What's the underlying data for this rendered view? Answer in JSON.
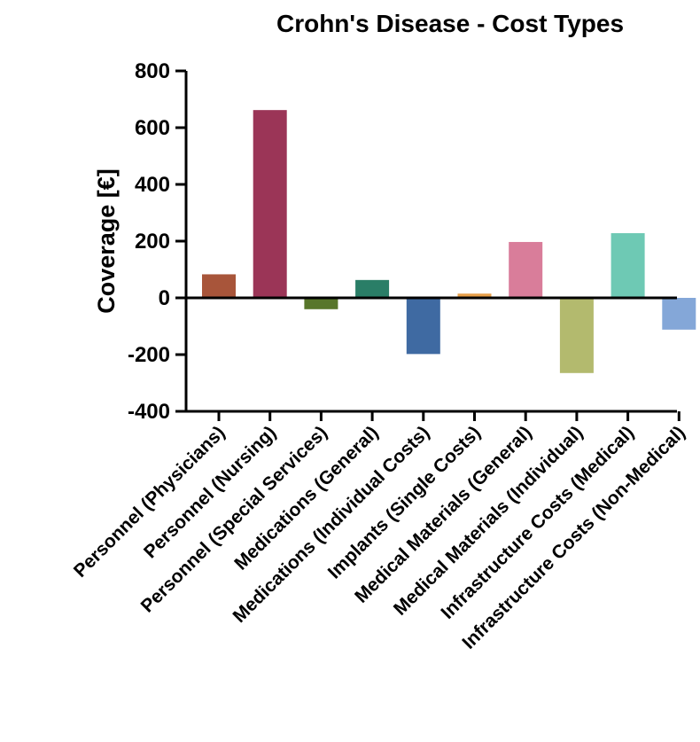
{
  "chart_data": {
    "type": "bar",
    "title": "Crohn's Disease - Cost Types",
    "xlabel": "",
    "ylabel": "Coverage [€]",
    "ylim": [
      -400,
      800
    ],
    "yticks": [
      -400,
      -200,
      0,
      200,
      400,
      600,
      800
    ],
    "grid": false,
    "categories": [
      "Personnel (Physicians)",
      "Personnel (Nursing)",
      "Personnel (Special Services)",
      "Medications (General)",
      "Medications (Individual Costs)",
      "Implants (Single Costs)",
      "Medical Materials (General)",
      "Medical Materials (Individual)",
      "Infrastructure Costs (Medical)",
      "Infrastructure Costs (Non-Medical)"
    ],
    "values": [
      83,
      662,
      -40,
      63,
      -198,
      15,
      197,
      -265,
      228,
      -112
    ],
    "colors": [
      "#a8553a",
      "#9b3557",
      "#58762a",
      "#2a7e67",
      "#3f6aa2",
      "#e8a04a",
      "#d97d9a",
      "#b3ba6e",
      "#6ec9b4",
      "#84a7d8"
    ]
  }
}
